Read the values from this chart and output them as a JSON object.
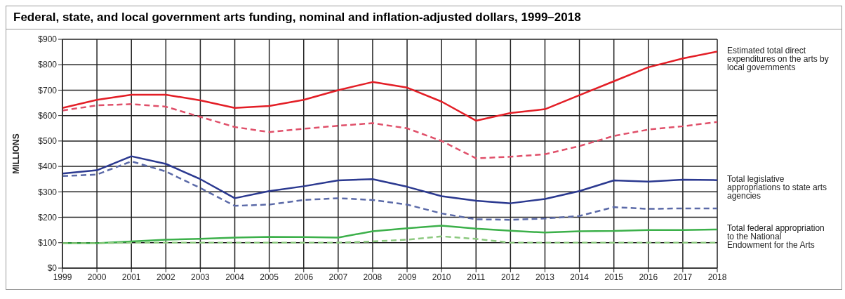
{
  "chart_data": {
    "type": "line",
    "title": "Federal, state, and local government arts funding, nominal and inflation-adjusted dollars, 1999–2018",
    "ylabel": "MILLIONS",
    "x": [
      1999,
      2000,
      2001,
      2002,
      2003,
      2004,
      2005,
      2006,
      2007,
      2008,
      2009,
      2010,
      2011,
      2012,
      2013,
      2014,
      2015,
      2016,
      2017,
      2018
    ],
    "series": [
      {
        "name": "Estimated total direct expenditures on the arts by local governments",
        "color": "#e31e26",
        "line_style": "solid",
        "values": [
          630,
          662,
          682,
          682,
          660,
          630,
          638,
          662,
          700,
          732,
          710,
          655,
          580,
          610,
          625,
          680,
          735,
          790,
          825,
          852
        ]
      },
      {
        "color": "#e0506a",
        "line_style": "dashed",
        "values": [
          620,
          640,
          645,
          635,
          595,
          555,
          535,
          548,
          560,
          570,
          550,
          500,
          432,
          438,
          448,
          480,
          520,
          545,
          558,
          575
        ]
      },
      {
        "name": "Total legislative appropriations to state arts agencies",
        "color": "#2b3990",
        "line_style": "solid",
        "values": [
          372,
          385,
          440,
          410,
          350,
          275,
          303,
          322,
          345,
          350,
          320,
          283,
          265,
          255,
          272,
          303,
          345,
          340,
          348,
          346
        ]
      },
      {
        "color": "#5b6aa8",
        "line_style": "dashed",
        "values": [
          362,
          368,
          420,
          380,
          315,
          245,
          250,
          268,
          275,
          268,
          250,
          215,
          192,
          190,
          195,
          205,
          240,
          233,
          235,
          235
        ]
      },
      {
        "name": "Total federal appropriation to the National Endowment for the Arts",
        "color": "#3cb04a",
        "line_style": "solid",
        "values": [
          98,
          98,
          105,
          112,
          115,
          120,
          123,
          122,
          120,
          145,
          157,
          167,
          155,
          147,
          140,
          145,
          146,
          150,
          150,
          152
        ]
      },
      {
        "color": "#8cc97f",
        "line_style": "dashed",
        "values": [
          98,
          98,
          100,
          100,
          100,
          100,
          100,
          100,
          100,
          105,
          112,
          125,
          115,
          100,
          100,
          100,
          100,
          100,
          100,
          100
        ]
      }
    ],
    "xlim": [
      1999,
      2018
    ],
    "xticks": [
      1999,
      2000,
      2001,
      2002,
      2003,
      2004,
      2005,
      2006,
      2007,
      2008,
      2009,
      2010,
      2011,
      2012,
      2013,
      2014,
      2015,
      2016,
      2017,
      2018
    ],
    "ylim": [
      0,
      900
    ],
    "yticks": [
      {
        "value": 0,
        "label": "$0"
      },
      {
        "value": 100,
        "label": "$100"
      },
      {
        "value": 200,
        "label": "$200"
      },
      {
        "value": 300,
        "label": "$300"
      },
      {
        "value": 400,
        "label": "$400"
      },
      {
        "value": 500,
        "label": "$500"
      },
      {
        "value": 600,
        "label": "$600"
      },
      {
        "value": 700,
        "label": "$700"
      },
      {
        "value": 800,
        "label": "$800"
      },
      {
        "value": 900,
        "label": "$900"
      }
    ],
    "grid": true,
    "legend": false,
    "marker": "none"
  }
}
